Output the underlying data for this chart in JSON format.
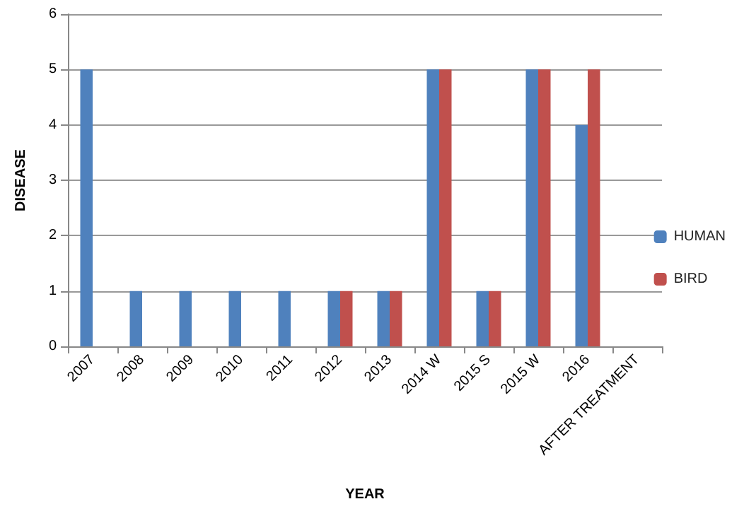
{
  "chart_data": {
    "type": "bar",
    "xlabel": "YEAR",
    "ylabel": "DISEASE",
    "categories": [
      "2007",
      "2008",
      "2009",
      "2010",
      "2011",
      "2012",
      "2013",
      "2014 W",
      "2015 S",
      "2015 W",
      "2016",
      "AFTER TREATMENT"
    ],
    "series": [
      {
        "name": "HUMAN",
        "color": "#4f81bd",
        "values": [
          5,
          1,
          1,
          1,
          1,
          1,
          1,
          5,
          1,
          5,
          4,
          0
        ]
      },
      {
        "name": "BIRD",
        "color": "#c0504d",
        "values": [
          0,
          0,
          0,
          0,
          0,
          1,
          1,
          5,
          1,
          5,
          5,
          0
        ]
      }
    ],
    "ylim": [
      0,
      6
    ],
    "yticks": [
      0,
      1,
      2,
      3,
      4,
      5,
      6
    ],
    "grid": "y",
    "legend": "right"
  }
}
